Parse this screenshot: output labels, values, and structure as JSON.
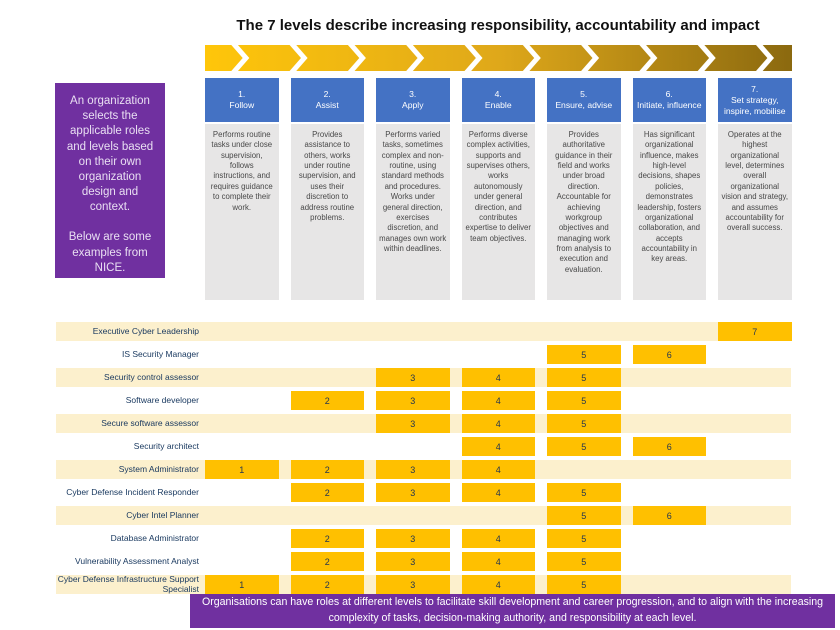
{
  "title": "The 7 levels describe increasing responsibility, accountability and impact",
  "side_note": {
    "paragraph1": "An organization selects the applicable roles and levels based on their own organization design and context.",
    "paragraph2": "Below are some examples from NICE."
  },
  "levels": [
    {
      "number": "1.",
      "name": "Follow",
      "description": "Performs routine tasks under close supervision, follows instructions, and requires guidance to complete their work."
    },
    {
      "number": "2.",
      "name": "Assist",
      "description": "Provides assistance to others, works under routine supervision, and uses their discretion to address routine problems."
    },
    {
      "number": "3.",
      "name": "Apply",
      "description": "Performs varied tasks, sometimes complex and non-routine, using standard methods and procedures. Works under general direction, exercises discretion, and manages own work within deadlines."
    },
    {
      "number": "4.",
      "name": "Enable",
      "description": "Performs diverse complex activities, supports and supervises others, works autonomously under general direction, and contributes expertise to deliver team objectives."
    },
    {
      "number": "5.",
      "name": "Ensure, advise",
      "description": "Provides authoritative guidance in their field and works under broad direction. Accountable for achieving workgroup objectives and managing work from analysis to execution and evaluation."
    },
    {
      "number": "6.",
      "name": "Initiate, influence",
      "description": "Has significant organizational influence, makes high-level decisions, shapes policies, demonstrates leadership, fosters organizational collaboration, and accepts accountability in key areas."
    },
    {
      "number": "7.",
      "name": "Set strategy, inspire, mobilise",
      "description": "Operates at the highest organizational level, determines overall organizational vision and strategy, and assumes accountability for overall success."
    }
  ],
  "roles": [
    {
      "name": "Executive Cyber Leadership",
      "levels": [
        7
      ],
      "highlighted": true
    },
    {
      "name": "IS Security Manager",
      "levels": [
        5,
        6
      ],
      "highlighted": false
    },
    {
      "name": "Security control assessor",
      "levels": [
        3,
        4,
        5
      ],
      "highlighted": true
    },
    {
      "name": "Software developer",
      "levels": [
        2,
        3,
        4,
        5
      ],
      "highlighted": false
    },
    {
      "name": "Secure software assessor",
      "levels": [
        3,
        4,
        5
      ],
      "highlighted": true
    },
    {
      "name": "Security architect",
      "levels": [
        4,
        5,
        6
      ],
      "highlighted": false
    },
    {
      "name": "System Administrator",
      "levels": [
        1,
        2,
        3,
        4
      ],
      "highlighted": true
    },
    {
      "name": "Cyber Defense Incident Responder",
      "levels": [
        2,
        3,
        4,
        5
      ],
      "highlighted": false
    },
    {
      "name": "Cyber Intel Planner",
      "levels": [
        5,
        6
      ],
      "highlighted": true
    },
    {
      "name": "Database Administrator",
      "levels": [
        2,
        3,
        4,
        5
      ],
      "highlighted": false
    },
    {
      "name": "Vulnerability Assessment Analyst",
      "levels": [
        2,
        3,
        4,
        5
      ],
      "highlighted": false
    },
    {
      "name": "Cyber Defense Infrastructure Support Specialist",
      "levels": [
        1,
        2,
        3,
        4,
        5
      ],
      "highlighted": true
    }
  ],
  "footer": "Organisations can have roles at different levels to facilitate skill development and career progression, and to align with the increasing complexity of tasks, decision-making authority, and responsibility at each level.",
  "colors": {
    "purple": "#7030A0",
    "header_blue": "#4472C4",
    "desc_gray": "#E7E6E6",
    "cell_gold": "#FFC000",
    "row_cream": "#FCF0CD",
    "label_navy": "#17375E",
    "band_start": "#FFC60A",
    "band_mid": "#DFA81A",
    "band_end": "#8B690F"
  }
}
